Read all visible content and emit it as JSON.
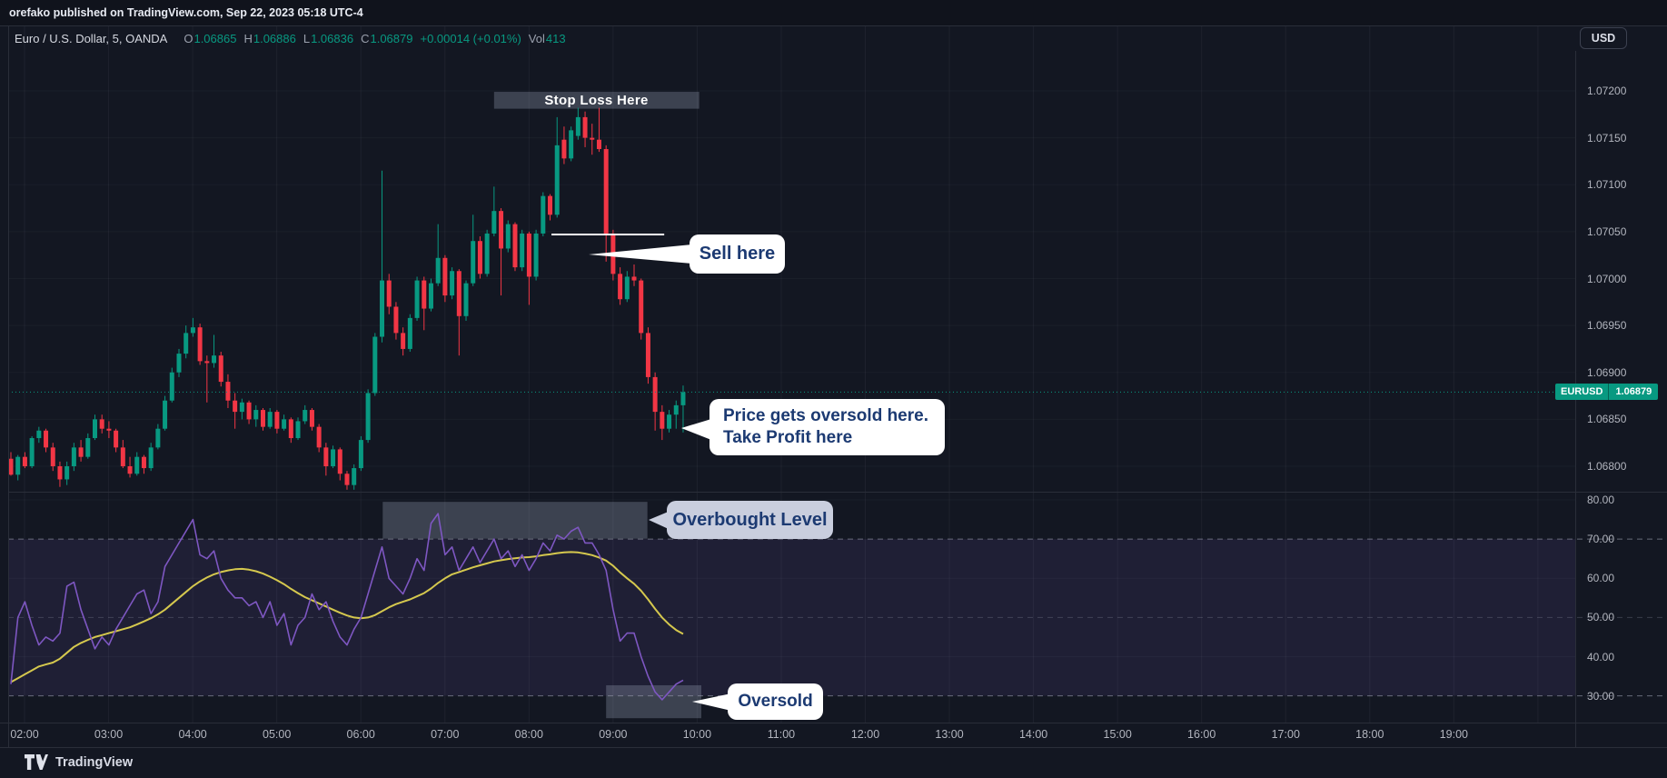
{
  "publish_bar": {
    "text": "orefako published on TradingView.com, Sep 22, 2023 05:18 UTC-4"
  },
  "symbol_bar": {
    "title": "Euro / U.S. Dollar, 5, OANDA",
    "open_label": "O",
    "open": "1.06865",
    "high_label": "H",
    "high": "1.06886",
    "low_label": "L",
    "low": "1.06836",
    "close_label": "C",
    "close": "1.06879",
    "change": "+0.00014 (+0.01%)",
    "volume_label": "Vol",
    "volume": "413"
  },
  "toolbar": {
    "currency_button": "USD"
  },
  "price_badge": {
    "symbol": "EURUSD",
    "price": "1.06879"
  },
  "annotations": {
    "stop_loss_label": "Stop Loss Here",
    "sell_callout": "Sell here",
    "take_profit_line1": "Price gets oversold here.",
    "take_profit_line2": "Take Profit here",
    "overbought_callout": "Overbought Level",
    "oversold_callout": "Oversold"
  },
  "footer": {
    "brand": "TradingView"
  },
  "colors": {
    "background": "#131722",
    "grid": "rgba(240,243,250,0.05)",
    "hgrid": "rgba(240,243,250,0.035)",
    "border": "#2a2e39",
    "axis_text": "#b2b5be",
    "up": "#089981",
    "down": "#f23645",
    "rsi_line": "#7e57c2",
    "rsi_ma_line": "#d5c84e",
    "rsi_band_fill": "rgba(126,87,194,0.12)",
    "dashed_level": "#9598a8",
    "zone_fill": "rgba(150,158,176,0.32)",
    "entry_line": "#ffffff",
    "current_price_line": "#089981",
    "callout_bg": "#ffffff",
    "overbought_callout_bg": "#c9cede",
    "callout_text": "#1c3a72"
  },
  "chart_data": {
    "type": "candlestick",
    "title": "Euro / U.S. Dollar",
    "exchange": "OANDA",
    "interval_minutes": 5,
    "start_time": "01:50",
    "price_axis_labels": [
      "1.07200",
      "1.07150",
      "1.07100",
      "1.07050",
      "1.07000",
      "1.06950",
      "1.06900",
      "1.06850",
      "1.06800"
    ],
    "rsi_axis_labels": [
      "80.00",
      "70.00",
      "60.00",
      "50.00",
      "40.00",
      "30.00"
    ],
    "time_axis_labels": [
      "02:00",
      "03:00",
      "04:00",
      "05:00",
      "06:00",
      "07:00",
      "08:00",
      "09:00",
      "10:00",
      "11:00",
      "12:00",
      "13:00",
      "14:00",
      "15:00",
      "16:00",
      "17:00",
      "18:00",
      "19:00"
    ],
    "last_price": 1.06879,
    "candles": [
      [
        1.06808,
        1.06815,
        1.0679,
        1.06791
      ],
      [
        1.06791,
        1.06812,
        1.06785,
        1.0681
      ],
      [
        1.0681,
        1.06815,
        1.06798,
        1.068
      ],
      [
        1.068,
        1.06832,
        1.06798,
        1.0683
      ],
      [
        1.0683,
        1.06842,
        1.06825,
        1.06838
      ],
      [
        1.06838,
        1.0684,
        1.06815,
        1.0682
      ],
      [
        1.0682,
        1.06825,
        1.06795,
        1.068
      ],
      [
        1.068,
        1.06805,
        1.06778,
        1.06786
      ],
      [
        1.06786,
        1.06805,
        1.0678,
        1.068
      ],
      [
        1.068,
        1.06825,
        1.06795,
        1.0682
      ],
      [
        1.0682,
        1.06828,
        1.06805,
        1.0681
      ],
      [
        1.0681,
        1.06835,
        1.06808,
        1.0683
      ],
      [
        1.0683,
        1.06855,
        1.06828,
        1.0685
      ],
      [
        1.0685,
        1.06855,
        1.06835,
        1.0684
      ],
      [
        1.0684,
        1.06848,
        1.0683,
        1.06838
      ],
      [
        1.06838,
        1.0684,
        1.06815,
        1.0682
      ],
      [
        1.0682,
        1.06828,
        1.06798,
        1.068
      ],
      [
        1.068,
        1.0681,
        1.06788,
        1.06792
      ],
      [
        1.06792,
        1.06815,
        1.0679,
        1.0681
      ],
      [
        1.0681,
        1.06812,
        1.06792,
        1.06798
      ],
      [
        1.06798,
        1.06825,
        1.06795,
        1.0682
      ],
      [
        1.0682,
        1.06845,
        1.06818,
        1.0684
      ],
      [
        1.0684,
        1.06875,
        1.06838,
        1.0687
      ],
      [
        1.0687,
        1.06905,
        1.06868,
        1.069
      ],
      [
        1.069,
        1.06925,
        1.06895,
        1.0692
      ],
      [
        1.0692,
        1.0695,
        1.06915,
        1.06942
      ],
      [
        1.06942,
        1.06958,
        1.06938,
        1.06948
      ],
      [
        1.06948,
        1.06952,
        1.06908,
        1.06912
      ],
      [
        1.06912,
        1.06918,
        1.06868,
        1.0691
      ],
      [
        1.0691,
        1.0694,
        1.06905,
        1.06918
      ],
      [
        1.06918,
        1.06922,
        1.06885,
        1.0689
      ],
      [
        1.0689,
        1.06898,
        1.06862,
        1.0687
      ],
      [
        1.0687,
        1.06878,
        1.0684,
        1.06858
      ],
      [
        1.06858,
        1.06872,
        1.0685,
        1.06868
      ],
      [
        1.06868,
        1.0687,
        1.06845,
        1.0685
      ],
      [
        1.0685,
        1.06865,
        1.06842,
        1.0686
      ],
      [
        1.0686,
        1.06862,
        1.06838,
        1.06842
      ],
      [
        1.06842,
        1.06862,
        1.0684,
        1.06858
      ],
      [
        1.06858,
        1.0686,
        1.06835,
        1.0684
      ],
      [
        1.0684,
        1.06855,
        1.06838,
        1.0685
      ],
      [
        1.0685,
        1.06852,
        1.06825,
        1.0683
      ],
      [
        1.0683,
        1.06852,
        1.06828,
        1.06848
      ],
      [
        1.06848,
        1.06865,
        1.06845,
        1.0686
      ],
      [
        1.0686,
        1.06862,
        1.06838,
        1.06842
      ],
      [
        1.06842,
        1.06845,
        1.06815,
        1.0682
      ],
      [
        1.0682,
        1.06825,
        1.0679,
        1.068
      ],
      [
        1.068,
        1.06822,
        1.06798,
        1.06818
      ],
      [
        1.06818,
        1.0682,
        1.06785,
        1.06792
      ],
      [
        1.06792,
        1.06795,
        1.06775,
        1.0678
      ],
      [
        1.0678,
        1.06802,
        1.06775,
        1.06798
      ],
      [
        1.06798,
        1.06832,
        1.06795,
        1.06828
      ],
      [
        1.06828,
        1.06882,
        1.06825,
        1.06878
      ],
      [
        1.06878,
        1.06942,
        1.06875,
        1.06938
      ],
      [
        1.06938,
        1.07115,
        1.06932,
        1.06998
      ],
      [
        1.06998,
        1.07005,
        1.06962,
        1.0697
      ],
      [
        1.0697,
        1.06975,
        1.06935,
        1.06942
      ],
      [
        1.06942,
        1.06948,
        1.06918,
        1.06925
      ],
      [
        1.06925,
        1.06962,
        1.06922,
        1.06958
      ],
      [
        1.06958,
        1.07002,
        1.06955,
        1.06998
      ],
      [
        1.06998,
        1.07002,
        1.06945,
        1.06968
      ],
      [
        1.06968,
        1.07,
        1.06965,
        1.06995
      ],
      [
        1.06995,
        1.07058,
        1.06992,
        1.07022
      ],
      [
        1.07022,
        1.07025,
        1.06975,
        1.06982
      ],
      [
        1.06982,
        1.07012,
        1.06978,
        1.07008
      ],
      [
        1.07008,
        1.0701,
        1.06918,
        1.0696
      ],
      [
        1.0696,
        1.06998,
        1.06955,
        1.06995
      ],
      [
        1.06995,
        1.07068,
        1.06992,
        1.0704
      ],
      [
        1.0704,
        1.07045,
        1.07,
        1.07005
      ],
      [
        1.07005,
        1.07052,
        1.07002,
        1.07048
      ],
      [
        1.07048,
        1.07098,
        1.07045,
        1.07072
      ],
      [
        1.07072,
        1.07075,
        1.06982,
        1.07032
      ],
      [
        1.07032,
        1.07062,
        1.07028,
        1.07058
      ],
      [
        1.07058,
        1.0706,
        1.07008,
        1.07012
      ],
      [
        1.07012,
        1.07052,
        1.07008,
        1.07048
      ],
      [
        1.07048,
        1.0705,
        1.06972,
        1.07002
      ],
      [
        1.07002,
        1.07052,
        1.06998,
        1.07048
      ],
      [
        1.07048,
        1.07092,
        1.07045,
        1.07088
      ],
      [
        1.07088,
        1.0709,
        1.07062,
        1.07068
      ],
      [
        1.07068,
        1.07172,
        1.07065,
        1.07142
      ],
      [
        1.07148,
        1.07162,
        1.07122,
        1.07128
      ],
      [
        1.07128,
        1.07162,
        1.07125,
        1.07158
      ],
      [
        1.07152,
        1.07182,
        1.07148,
        1.07172
      ],
      [
        1.07172,
        1.07178,
        1.0714,
        1.0715
      ],
      [
        1.0715,
        1.07165,
        1.07132,
        1.07148
      ],
      [
        1.07148,
        1.07182,
        1.07135,
        1.07138
      ],
      [
        1.07138,
        1.07142,
        1.07018,
        1.07048
      ],
      [
        1.07048,
        1.07052,
        1.06998,
        1.07005
      ],
      [
        1.07005,
        1.07012,
        1.06972,
        1.06978
      ],
      [
        1.06978,
        1.07008,
        1.06975,
        1.07002
      ],
      [
        1.07002,
        1.07015,
        1.06992,
        1.06998
      ],
      [
        1.06998,
        1.07,
        1.06935,
        1.06942
      ],
      [
        1.06942,
        1.06948,
        1.06888,
        1.06895
      ],
      [
        1.06895,
        1.069,
        1.06838,
        1.06858
      ],
      [
        1.06858,
        1.06865,
        1.06828,
        1.0684
      ],
      [
        1.0684,
        1.0686,
        1.06836,
        1.06855
      ],
      [
        1.06855,
        1.0687,
        1.0684,
        1.06865
      ],
      [
        1.06865,
        1.06886,
        1.06836,
        1.06879
      ]
    ],
    "rsi": {
      "name": "RSI",
      "levels": {
        "overbought": 70,
        "middle": 50,
        "oversold": 30
      },
      "values": [
        33,
        50,
        54,
        48,
        43,
        45,
        44,
        46,
        58,
        59,
        52,
        47,
        42,
        45,
        43,
        47,
        50,
        53,
        56,
        57,
        51,
        54,
        63,
        66,
        69,
        72,
        75,
        66,
        65,
        67,
        60,
        57,
        55,
        55,
        53,
        54,
        50,
        54,
        48,
        51,
        43,
        48,
        50,
        56,
        52,
        54,
        49,
        45,
        43,
        47,
        50,
        56,
        62,
        68,
        60,
        58,
        56,
        60,
        65,
        62,
        74,
        76.5,
        66,
        68,
        62,
        65,
        68,
        64,
        67,
        70,
        65,
        67,
        63,
        66,
        62,
        65,
        69,
        67,
        71,
        70,
        72,
        73,
        69,
        69,
        66,
        62,
        52,
        44,
        46,
        46,
        40,
        35,
        31,
        29,
        31,
        33,
        34
      ],
      "ma_values": [
        33.5,
        34.5,
        35.5,
        36.5,
        37.5,
        38,
        38.5,
        39.5,
        41,
        42.5,
        43.5,
        44.3,
        45,
        45.5,
        46,
        46.5,
        47,
        47.5,
        48.2,
        49,
        49.8,
        50.8,
        52,
        53.5,
        55,
        56.5,
        58,
        59.2,
        60.2,
        61,
        61.6,
        62,
        62.3,
        62.4,
        62.2,
        61.8,
        61.2,
        60.4,
        59.5,
        58.5,
        57.3,
        56.2,
        55.2,
        54.4,
        53.6,
        52.8,
        52,
        51.2,
        50.5,
        50,
        49.8,
        50,
        50.6,
        51.6,
        52.6,
        53.4,
        54,
        54.6,
        55.4,
        56.2,
        57.4,
        58.8,
        60,
        61,
        61.6,
        62.2,
        62.8,
        63.3,
        63.8,
        64.3,
        64.6,
        64.9,
        65.1,
        65.3,
        65.4,
        65.6,
        65.9,
        66.1,
        66.4,
        66.6,
        66.7,
        66.6,
        66.3,
        65.9,
        65.3,
        64.5,
        63.2,
        61.5,
        60,
        58.6,
        56.8,
        54.6,
        52.2,
        50,
        48.2,
        46.8,
        45.8
      ]
    },
    "drawings": {
      "stop_loss_zone": {
        "pane": "price",
        "bar_from": 69,
        "bar_to": 98.3,
        "price_from": 1.07181,
        "price_to": 1.07199
      },
      "entry_line": {
        "pane": "price",
        "price": 1.07047,
        "bar_from": 77.2,
        "bar_to": 93.3
      },
      "overbought_zone": {
        "pane": "rsi",
        "bar_from": 53.1,
        "bar_to": 90.9,
        "value_from": 70.1,
        "value_to": 79.5
      },
      "oversold_zone": {
        "pane": "rsi",
        "bar_from": 85,
        "bar_to": 98.6,
        "value_from": 24.3,
        "value_to": 32.7
      }
    }
  }
}
